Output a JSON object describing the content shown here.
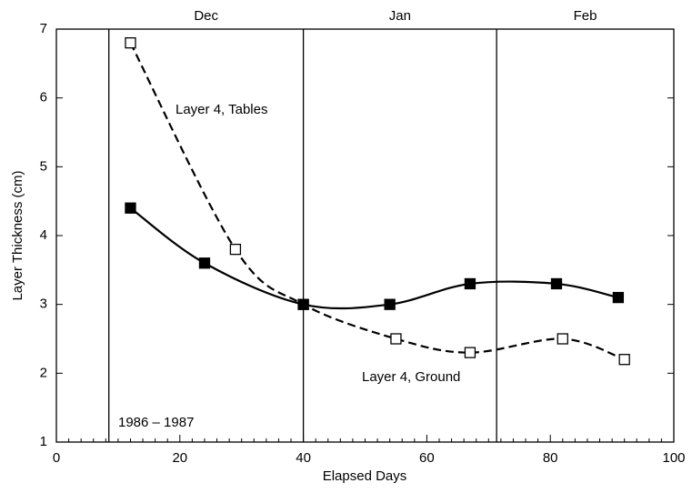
{
  "chart_data": {
    "type": "line",
    "xlabel": "Elapsed Days",
    "ylabel": "Layer Thickness (cm)",
    "xlim": [
      0,
      100
    ],
    "xticks": [
      0,
      20,
      40,
      60,
      80,
      100
    ],
    "ylim": [
      1,
      7
    ],
    "yticks": [
      1,
      2,
      3,
      4,
      5,
      6,
      7
    ],
    "months": [
      "Dec",
      "Jan",
      "Feb"
    ],
    "month_boundaries": [
      8.5,
      40,
      71.3
    ],
    "series": [
      {
        "color": "#000000",
        "marker": "open",
        "dashed": true,
        "x": [
          12,
          29,
          40,
          55,
          67,
          82,
          92
        ],
        "values": [
          6.8,
          3.8,
          3.0,
          2.5,
          2.3,
          2.5,
          2.2
        ]
      },
      {
        "color": "#000000",
        "marker": "filled",
        "dashed": false,
        "x": [
          12,
          24,
          40,
          54,
          67,
          81,
          91
        ],
        "values": [
          4.4,
          3.6,
          3.0,
          3.0,
          3.3,
          3.3,
          3.1
        ]
      }
    ],
    "annotations": [
      "Layer 4, Tables",
      "Layer 4, Ground",
      "1986 – 1987"
    ]
  }
}
